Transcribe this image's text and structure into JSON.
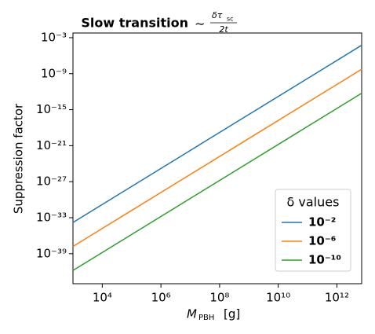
{
  "chart_data": {
    "type": "line",
    "title": "Slow transition",
    "title_math": {
      "prefix": "∼",
      "numerator": "δτ",
      "numerator_sub": "sc",
      "denominator": "2t"
    },
    "xlabel": "M",
    "xlabel_sub": "PBH",
    "xlabel_unit": "[g]",
    "ylabel": "Suppression factor",
    "x": [
      1000,
      100000,
      10000000,
      1000000000,
      100000000000,
      7000000000000
    ],
    "series": [
      {
        "name": "10⁻²",
        "color": "#1f77b4",
        "values": [
          1.6e-34,
          1.6e-28,
          1.6e-22,
          1.6e-16,
          1.6e-10,
          5.5e-05
        ]
      },
      {
        "name": "10⁻⁶",
        "color": "#ff7f0e",
        "values": [
          1.6e-38,
          1.6e-32,
          1.6e-26,
          1.6e-20,
          1.6e-14,
          5.5e-09
        ]
      },
      {
        "name": "10⁻¹⁰",
        "color": "#2ca02c",
        "values": [
          1.6e-42,
          1.6e-36,
          1.6e-30,
          1.6e-24,
          1.6e-18,
          5.5e-13
        ]
      }
    ],
    "xscale": "log",
    "yscale": "log",
    "xlim": [
      1000,
      7000000000000
    ],
    "ylim": [
      1e-44,
      0.006
    ],
    "xticks": [
      {
        "value": 10000,
        "label": "10⁴"
      },
      {
        "value": 1000000,
        "label": "10⁶"
      },
      {
        "value": 100000000,
        "label": "10⁸"
      },
      {
        "value": 10000000000,
        "label": "10¹⁰"
      },
      {
        "value": 1000000000000,
        "label": "10¹²"
      }
    ],
    "yticks": [
      {
        "value": 0.001,
        "label": "10⁻³"
      },
      {
        "value": 1e-09,
        "label": "10⁻⁹"
      },
      {
        "value": 1e-15,
        "label": "10⁻¹⁵"
      },
      {
        "value": 1e-21,
        "label": "10⁻²¹"
      },
      {
        "value": 1e-27,
        "label": "10⁻²⁷"
      },
      {
        "value": 1e-33,
        "label": "10⁻³³"
      },
      {
        "value": 1e-39,
        "label": "10⁻³⁹"
      }
    ],
    "grid": false,
    "legend": {
      "title": "δ values",
      "position": "lower right"
    }
  }
}
